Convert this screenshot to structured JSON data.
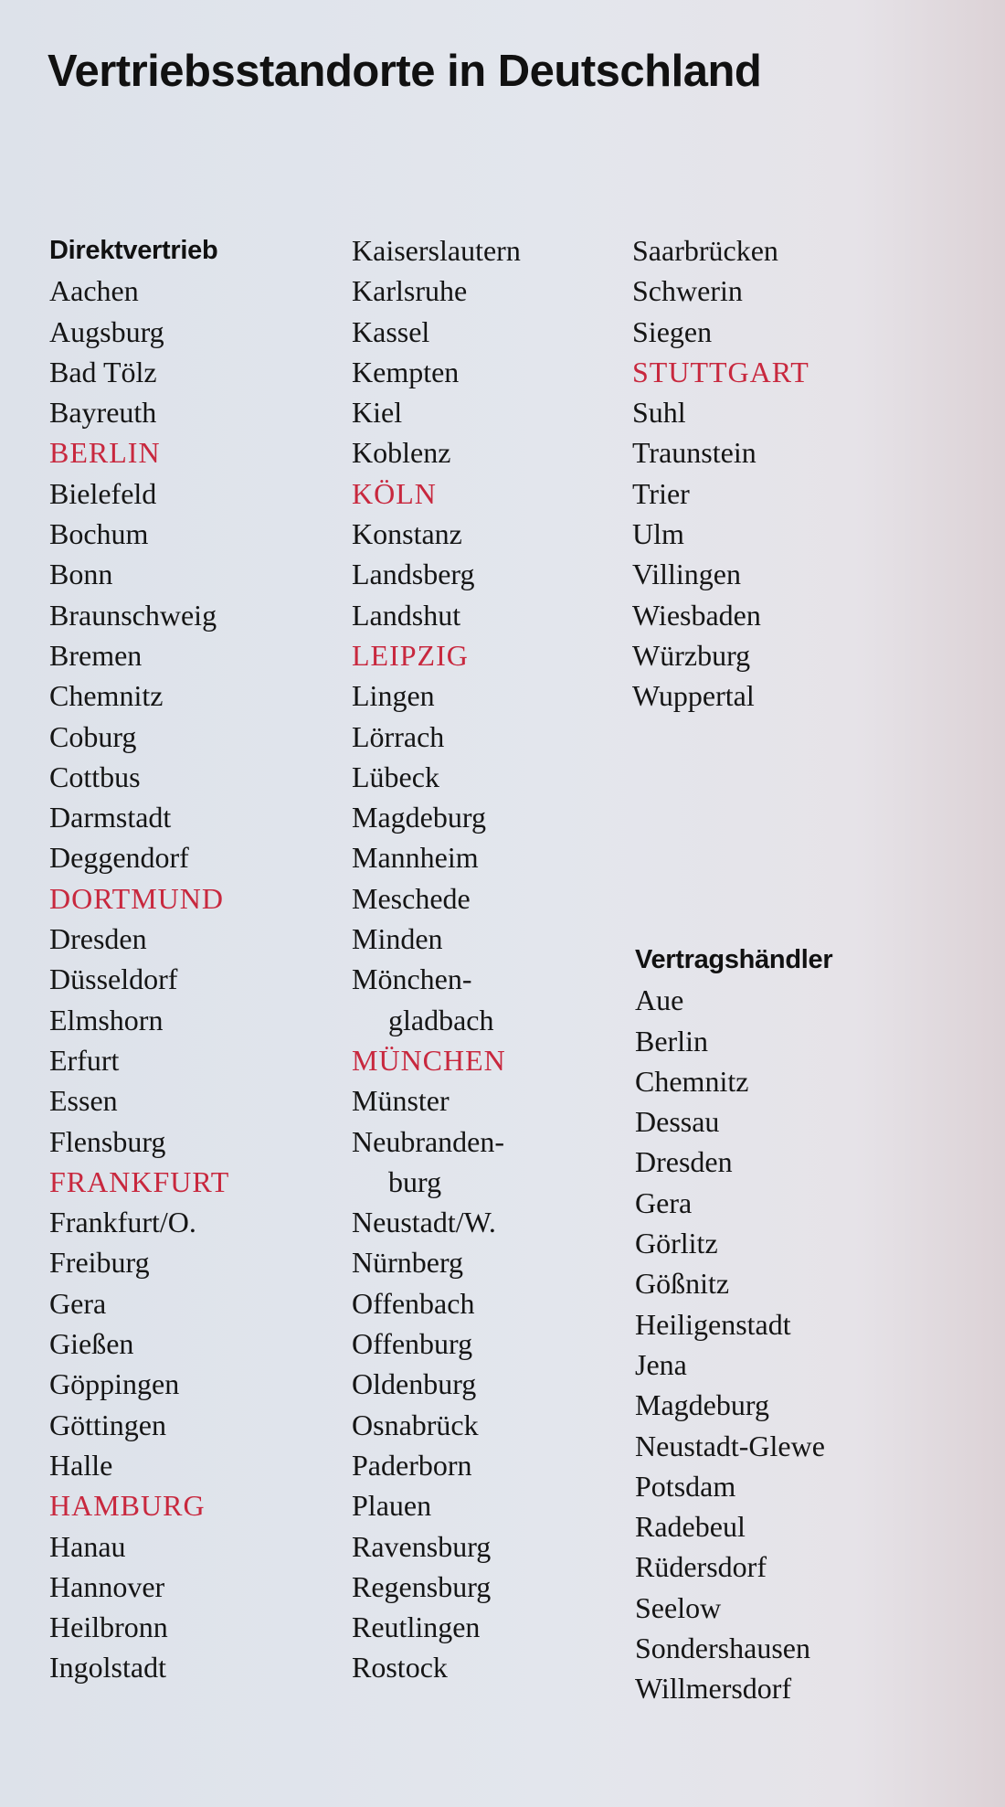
{
  "title": "Vertriebsstandorte in Deutschland",
  "colors": {
    "highlight": "#c8283e",
    "text": "#151515"
  },
  "direktvertrieb": {
    "heading": "Direktvertrieb",
    "columns": [
      [
        {
          "text": "Aachen"
        },
        {
          "text": "Augsburg"
        },
        {
          "text": "Bad Tölz"
        },
        {
          "text": "Bayreuth"
        },
        {
          "text": "BERLIN",
          "highlight": true
        },
        {
          "text": "Bielefeld"
        },
        {
          "text": "Bochum"
        },
        {
          "text": "Bonn"
        },
        {
          "text": "Braunschweig"
        },
        {
          "text": "Bremen"
        },
        {
          "text": "Chemnitz"
        },
        {
          "text": "Coburg"
        },
        {
          "text": "Cottbus"
        },
        {
          "text": "Darmstadt"
        },
        {
          "text": "Deggendorf"
        },
        {
          "text": "DORTMUND",
          "highlight": true
        },
        {
          "text": "Dresden"
        },
        {
          "text": "Düsseldorf"
        },
        {
          "text": "Elmshorn"
        },
        {
          "text": "Erfurt"
        },
        {
          "text": "Essen"
        },
        {
          "text": "Flensburg"
        },
        {
          "text": "FRANKFURT",
          "highlight": true
        },
        {
          "text": "Frankfurt/O."
        },
        {
          "text": "Freiburg"
        },
        {
          "text": "Gera"
        },
        {
          "text": "Gießen"
        },
        {
          "text": "Göppingen"
        },
        {
          "text": "Göttingen"
        },
        {
          "text": "Halle"
        },
        {
          "text": "HAMBURG",
          "highlight": true
        },
        {
          "text": "Hanau"
        },
        {
          "text": "Hannover"
        },
        {
          "text": "Heilbronn"
        },
        {
          "text": "Ingolstadt"
        }
      ],
      [
        {
          "text": "Kaiserslautern"
        },
        {
          "text": "Karlsruhe"
        },
        {
          "text": "Kassel"
        },
        {
          "text": "Kempten"
        },
        {
          "text": "Kiel"
        },
        {
          "text": "Koblenz"
        },
        {
          "text": "KÖLN",
          "highlight": true
        },
        {
          "text": "Konstanz"
        },
        {
          "text": "Landsberg"
        },
        {
          "text": "Landshut"
        },
        {
          "text": "LEIPZIG",
          "highlight": true
        },
        {
          "text": "Lingen"
        },
        {
          "text": "Lörrach"
        },
        {
          "text": "Lübeck"
        },
        {
          "text": "Magdeburg"
        },
        {
          "text": "Mannheim"
        },
        {
          "text": "Meschede"
        },
        {
          "text": "Minden"
        },
        {
          "text": "Mönchen-"
        },
        {
          "text": "gladbach",
          "indent": true
        },
        {
          "text": "MÜNCHEN",
          "highlight": true
        },
        {
          "text": "Münster"
        },
        {
          "text": "Neubranden-"
        },
        {
          "text": "burg",
          "indent": true
        },
        {
          "text": "Neustadt/W."
        },
        {
          "text": "Nürnberg"
        },
        {
          "text": "Offenbach"
        },
        {
          "text": "Offenburg"
        },
        {
          "text": "Oldenburg"
        },
        {
          "text": "Osnabrück"
        },
        {
          "text": "Paderborn"
        },
        {
          "text": "Plauen"
        },
        {
          "text": "Ravensburg"
        },
        {
          "text": "Regensburg"
        },
        {
          "text": "Reutlingen"
        },
        {
          "text": "Rostock"
        }
      ],
      [
        {
          "text": "Saarbrücken"
        },
        {
          "text": "Schwerin"
        },
        {
          "text": "Siegen"
        },
        {
          "text": "STUTTGART",
          "highlight": true
        },
        {
          "text": "Suhl"
        },
        {
          "text": "Traunstein"
        },
        {
          "text": "Trier"
        },
        {
          "text": "Ulm"
        },
        {
          "text": "Villingen"
        },
        {
          "text": "Wiesbaden"
        },
        {
          "text": "Würzburg"
        },
        {
          "text": "Wuppertal"
        }
      ]
    ]
  },
  "vertragshaendler": {
    "heading": "Vertragshändler",
    "items": [
      {
        "text": "Aue"
      },
      {
        "text": "Berlin"
      },
      {
        "text": "Chemnitz"
      },
      {
        "text": "Dessau"
      },
      {
        "text": "Dresden"
      },
      {
        "text": "Gera"
      },
      {
        "text": "Görlitz"
      },
      {
        "text": "Gößnitz"
      },
      {
        "text": "Heiligenstadt"
      },
      {
        "text": "Jena"
      },
      {
        "text": "Magdeburg"
      },
      {
        "text": "Neustadt-Glewe"
      },
      {
        "text": "Potsdam"
      },
      {
        "text": "Radebeul"
      },
      {
        "text": "Rüdersdorf"
      },
      {
        "text": "Seelow"
      },
      {
        "text": "Sondershausen"
      },
      {
        "text": "Willmersdorf"
      }
    ]
  }
}
